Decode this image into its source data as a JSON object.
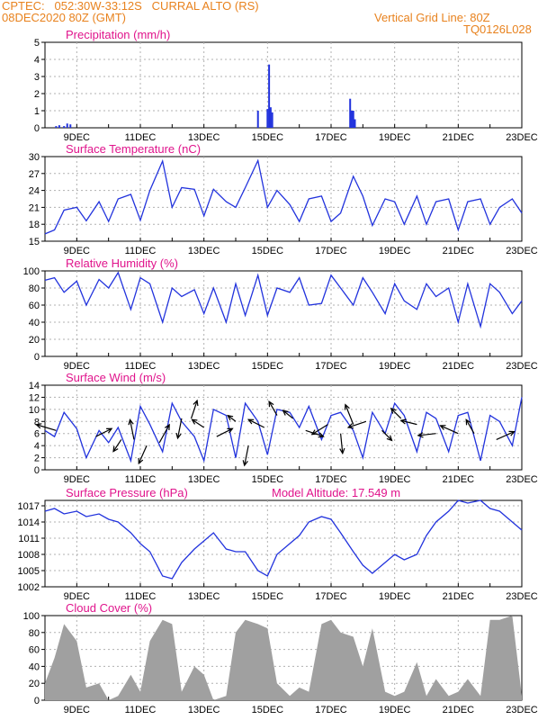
{
  "header": {
    "station": "CPTEC:   052:30W-33:12S   CURRAL ALTO (RS)",
    "run": "08DEC2020 80Z (GMT)",
    "grid_note": "Vertical Grid Line: 80Z",
    "code": "TQ0126L028"
  },
  "colors": {
    "header": "#e8821e",
    "title": "#e0148c",
    "line": "#2233dd",
    "cloud": "#a0a0a0",
    "grid": "#b0b0b0"
  },
  "chart_data": [
    {
      "type": "bar",
      "title": "Precipitation (mm/h)",
      "yticks": [
        0,
        1,
        2,
        3,
        4,
        5
      ],
      "ylim": [
        0,
        5
      ],
      "xlim": [
        8.0,
        23.0
      ],
      "xticks": [
        "9DEC",
        "11DEC",
        "13DEC",
        "15DEC",
        "17DEC",
        "19DEC",
        "21DEC",
        "23DEC"
      ],
      "x": [
        8.35,
        8.45,
        8.6,
        8.7,
        8.8,
        14.7,
        15.0,
        15.05,
        15.1,
        15.15,
        17.6,
        17.65,
        17.7,
        17.75
      ],
      "values": [
        0.1,
        0.15,
        0.1,
        0.25,
        0.2,
        1.0,
        1.1,
        3.7,
        1.2,
        0.9,
        1.7,
        1.0,
        1.0,
        0.5
      ]
    },
    {
      "type": "line",
      "title": "Surface Temperature (nC)",
      "yticks": [
        15,
        18,
        21,
        24,
        27,
        30
      ],
      "ylim": [
        15,
        30
      ],
      "xlim": [
        8.0,
        23.0
      ],
      "xticks": [
        "9DEC",
        "11DEC",
        "13DEC",
        "15DEC",
        "17DEC",
        "19DEC",
        "21DEC",
        "23DEC"
      ],
      "x": [
        8.0,
        8.3,
        8.6,
        9.0,
        9.3,
        9.7,
        10.0,
        10.3,
        10.7,
        11.0,
        11.3,
        11.7,
        12.0,
        12.3,
        12.7,
        13.0,
        13.3,
        13.7,
        14.0,
        14.3,
        14.7,
        15.0,
        15.3,
        15.7,
        16.0,
        16.3,
        16.7,
        17.0,
        17.3,
        17.7,
        18.0,
        18.3,
        18.7,
        19.0,
        19.3,
        19.7,
        20.0,
        20.3,
        20.7,
        21.0,
        21.3,
        21.7,
        22.0,
        22.3,
        22.7,
        23.0
      ],
      "values": [
        16.3,
        17.0,
        20.5,
        21.0,
        18.6,
        22.0,
        18.5,
        22.5,
        23.3,
        18.7,
        24.0,
        29.2,
        21.0,
        24.5,
        24.2,
        19.5,
        24.2,
        22.0,
        21.0,
        24.5,
        29.3,
        21.0,
        24.0,
        21.5,
        18.5,
        22.5,
        23.0,
        18.5,
        20.0,
        26.5,
        23.0,
        17.8,
        22.5,
        22.0,
        18.0,
        23.0,
        18.0,
        22.0,
        22.5,
        17.0,
        22.0,
        22.5,
        18.0,
        21.0,
        22.5,
        20.0
      ]
    },
    {
      "type": "line",
      "title": "Relative Humidity (%)",
      "yticks": [
        0,
        20,
        40,
        60,
        80,
        100
      ],
      "ylim": [
        0,
        100
      ],
      "xlim": [
        8.0,
        23.0
      ],
      "xticks": [
        "9DEC",
        "11DEC",
        "13DEC",
        "15DEC",
        "17DEC",
        "19DEC",
        "21DEC",
        "23DEC"
      ],
      "x": [
        8.0,
        8.3,
        8.6,
        9.0,
        9.3,
        9.7,
        10.0,
        10.3,
        10.7,
        11.0,
        11.3,
        11.7,
        12.0,
        12.3,
        12.7,
        13.0,
        13.3,
        13.7,
        14.0,
        14.3,
        14.7,
        15.0,
        15.3,
        15.7,
        16.0,
        16.3,
        16.7,
        17.0,
        17.3,
        17.7,
        18.0,
        18.3,
        18.7,
        19.0,
        19.3,
        19.7,
        20.0,
        20.3,
        20.7,
        21.0,
        21.3,
        21.7,
        22.0,
        22.3,
        22.7,
        23.0
      ],
      "values": [
        89,
        92,
        75,
        88,
        60,
        90,
        80,
        98,
        55,
        92,
        85,
        40,
        80,
        70,
        78,
        50,
        80,
        40,
        85,
        48,
        95,
        48,
        80,
        75,
        92,
        60,
        62,
        95,
        80,
        60,
        92,
        75,
        50,
        85,
        65,
        55,
        85,
        70,
        80,
        40,
        85,
        35,
        85,
        75,
        50,
        65
      ]
    },
    {
      "type": "line",
      "title": "Surface Wind (m/s)",
      "yticks": [
        0,
        2,
        4,
        6,
        8,
        10,
        12,
        14
      ],
      "ylim": [
        0,
        14
      ],
      "xlim": [
        8.0,
        23.0
      ],
      "xticks": [
        "9DEC",
        "11DEC",
        "13DEC",
        "15DEC",
        "17DEC",
        "19DEC",
        "21DEC",
        "23DEC"
      ],
      "x": [
        8.0,
        8.3,
        8.6,
        9.0,
        9.3,
        9.7,
        10.0,
        10.3,
        10.7,
        11.0,
        11.3,
        11.7,
        12.0,
        12.3,
        12.7,
        13.0,
        13.3,
        13.7,
        14.0,
        14.3,
        14.7,
        15.0,
        15.3,
        15.7,
        16.0,
        16.3,
        16.7,
        17.0,
        17.3,
        17.7,
        18.0,
        18.3,
        18.7,
        19.0,
        19.3,
        19.7,
        20.0,
        20.3,
        20.7,
        21.0,
        21.3,
        21.7,
        22.0,
        22.3,
        22.7,
        23.0
      ],
      "values": [
        6.5,
        5.5,
        9.5,
        6.8,
        2.0,
        6.5,
        4.5,
        7.0,
        1.5,
        10.5,
        7.5,
        3.0,
        11.0,
        8.0,
        5.5,
        1.5,
        10.0,
        9.0,
        2.0,
        11.0,
        8.0,
        2.5,
        10.0,
        9.5,
        7.0,
        10.5,
        5.0,
        9.0,
        9.5,
        6.5,
        2.0,
        9.5,
        6.0,
        11.0,
        9.0,
        3.0,
        9.5,
        8.5,
        3.0,
        9.0,
        9.5,
        1.5,
        9.0,
        8.0,
        4.0,
        12.0
      ],
      "arrows": [
        {
          "x": 8.35,
          "y": 6.5,
          "u": -1,
          "v": 0.3
        },
        {
          "x": 9.6,
          "y": 5.5,
          "u": 0.8,
          "v": 0.4
        },
        {
          "x": 10.4,
          "y": 5.0,
          "u": -0.4,
          "v": -0.6
        },
        {
          "x": 10.8,
          "y": 5.0,
          "u": -0.2,
          "v": 1.0
        },
        {
          "x": 11.2,
          "y": 4.0,
          "u": -0.4,
          "v": -0.9
        },
        {
          "x": 11.6,
          "y": 4.5,
          "u": 0.5,
          "v": 0.9
        },
        {
          "x": 12.3,
          "y": 8.5,
          "u": -0.2,
          "v": -1.0
        },
        {
          "x": 12.6,
          "y": 8.5,
          "u": 0.3,
          "v": 0.9
        },
        {
          "x": 13.0,
          "y": 7.0,
          "u": -0.6,
          "v": 0.4
        },
        {
          "x": 13.4,
          "y": 5.5,
          "u": 0.8,
          "v": 0.4
        },
        {
          "x": 14.0,
          "y": 8.0,
          "u": -0.4,
          "v": 0.3
        },
        {
          "x": 14.4,
          "y": 4.0,
          "u": -0.2,
          "v": -1.0
        },
        {
          "x": 14.9,
          "y": 7.0,
          "u": -0.8,
          "v": 0.4
        },
        {
          "x": 15.3,
          "y": 9.0,
          "u": -0.4,
          "v": 0.7
        },
        {
          "x": 15.8,
          "y": 8.5,
          "u": -0.5,
          "v": 0.4
        },
        {
          "x": 16.2,
          "y": 6.5,
          "u": 0.9,
          "v": -0.3
        },
        {
          "x": 16.9,
          "y": 7.5,
          "u": -0.8,
          "v": -0.5
        },
        {
          "x": 17.3,
          "y": 6.0,
          "u": 0.1,
          "v": -1.0
        },
        {
          "x": 17.7,
          "y": 7.5,
          "u": -0.4,
          "v": 1.0
        },
        {
          "x": 18.1,
          "y": 8.0,
          "u": -0.9,
          "v": -0.3
        },
        {
          "x": 18.6,
          "y": 6.5,
          "u": 0.5,
          "v": -0.5
        },
        {
          "x": 19.2,
          "y": 8.5,
          "u": -0.5,
          "v": 0.5
        },
        {
          "x": 19.7,
          "y": 7.5,
          "u": -0.8,
          "v": 0.2
        },
        {
          "x": 20.3,
          "y": 6.0,
          "u": -0.9,
          "v": -0.1
        },
        {
          "x": 21.0,
          "y": 6.0,
          "u": -0.9,
          "v": 0.4
        },
        {
          "x": 21.5,
          "y": 6.0,
          "u": -0.4,
          "v": 0.7
        },
        {
          "x": 22.2,
          "y": 5.0,
          "u": 0.9,
          "v": 0.4
        }
      ]
    },
    {
      "type": "line",
      "title": "Surface Pressure (hPa)",
      "annotation": "Model Altitude: 17.549  m",
      "yticks": [
        1002,
        1005,
        1008,
        1011,
        1014,
        1017
      ],
      "ylim": [
        1002,
        1018
      ],
      "xlim": [
        8.0,
        23.0
      ],
      "xticks": [
        "9DEC",
        "11DEC",
        "13DEC",
        "15DEC",
        "17DEC",
        "19DEC",
        "21DEC",
        "23DEC"
      ],
      "x": [
        8.0,
        8.3,
        8.6,
        9.0,
        9.3,
        9.7,
        10.0,
        10.3,
        10.7,
        11.0,
        11.3,
        11.7,
        12.0,
        12.3,
        12.7,
        13.0,
        13.3,
        13.7,
        14.0,
        14.3,
        14.7,
        15.0,
        15.3,
        15.7,
        16.0,
        16.3,
        16.7,
        17.0,
        17.3,
        17.7,
        18.0,
        18.3,
        18.7,
        19.0,
        19.3,
        19.7,
        20.0,
        20.3,
        20.7,
        21.0,
        21.3,
        21.7,
        22.0,
        22.3,
        22.7,
        23.0
      ],
      "values": [
        1016.0,
        1016.5,
        1015.5,
        1016.0,
        1015.0,
        1015.5,
        1014.5,
        1014.0,
        1012.0,
        1010.0,
        1008.5,
        1004.0,
        1003.5,
        1006.5,
        1009.0,
        1010.5,
        1012.0,
        1009.0,
        1008.5,
        1008.5,
        1005.0,
        1004.0,
        1008.0,
        1010.0,
        1011.5,
        1014.0,
        1015.0,
        1014.5,
        1012.0,
        1008.5,
        1006.0,
        1004.5,
        1006.5,
        1008.0,
        1007.0,
        1008.0,
        1011.5,
        1014.0,
        1016.0,
        1018.0,
        1017.5,
        1018.0,
        1016.5,
        1016.0,
        1014.0,
        1012.5
      ]
    },
    {
      "type": "area",
      "title": "Cloud Cover (%)",
      "yticks": [
        0,
        20,
        40,
        60,
        80,
        100
      ],
      "ylim": [
        0,
        100
      ],
      "xlim": [
        8.0,
        23.0
      ],
      "xticks": [
        "9DEC",
        "11DEC",
        "13DEC",
        "15DEC",
        "17DEC",
        "19DEC",
        "21DEC",
        "23DEC"
      ],
      "x": [
        8.0,
        8.3,
        8.6,
        9.0,
        9.3,
        9.7,
        10.0,
        10.3,
        10.7,
        11.0,
        11.3,
        11.7,
        12.0,
        12.3,
        12.7,
        13.0,
        13.3,
        13.7,
        14.0,
        14.3,
        14.7,
        15.0,
        15.3,
        15.7,
        16.0,
        16.3,
        16.7,
        17.0,
        17.3,
        17.7,
        18.0,
        18.3,
        18.7,
        19.0,
        19.3,
        19.7,
        20.0,
        20.3,
        20.7,
        21.0,
        21.3,
        21.7,
        22.0,
        22.3,
        22.7,
        23.0
      ],
      "values": [
        20,
        50,
        90,
        70,
        15,
        20,
        0,
        5,
        30,
        10,
        70,
        95,
        90,
        10,
        40,
        30,
        0,
        5,
        80,
        95,
        90,
        85,
        20,
        5,
        15,
        10,
        90,
        95,
        80,
        75,
        40,
        85,
        10,
        5,
        10,
        45,
        5,
        25,
        5,
        10,
        25,
        5,
        95,
        95,
        100,
        5
      ]
    }
  ]
}
